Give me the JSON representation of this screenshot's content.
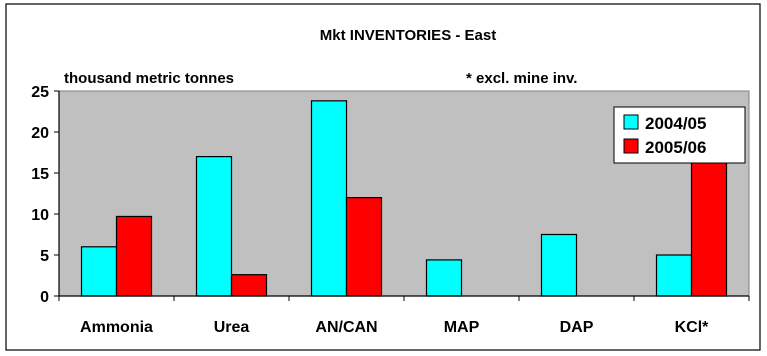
{
  "chart_data": {
    "type": "bar",
    "title": "Mkt INVENTORIES - East",
    "ylabel": "thousand metric tonnes",
    "annotation": "* excl. mine inv.",
    "categories": [
      "Ammonia",
      "Urea",
      "AN/CAN",
      "MAP",
      "DAP",
      "KCl*"
    ],
    "series": [
      {
        "name": "2004/05",
        "color": "#00FFFF",
        "values": [
          6.0,
          17.0,
          23.8,
          4.4,
          7.5,
          5.0
        ]
      },
      {
        "name": "2005/06",
        "color": "#FF0000",
        "values": [
          9.7,
          2.6,
          12.0,
          0,
          0,
          18.7
        ]
      }
    ],
    "yticks": [
      0,
      5,
      10,
      15,
      20,
      25
    ],
    "ylim": [
      0,
      25
    ],
    "grid": false,
    "legend_position": "top-right",
    "plot_background": "#C0C0C0"
  }
}
